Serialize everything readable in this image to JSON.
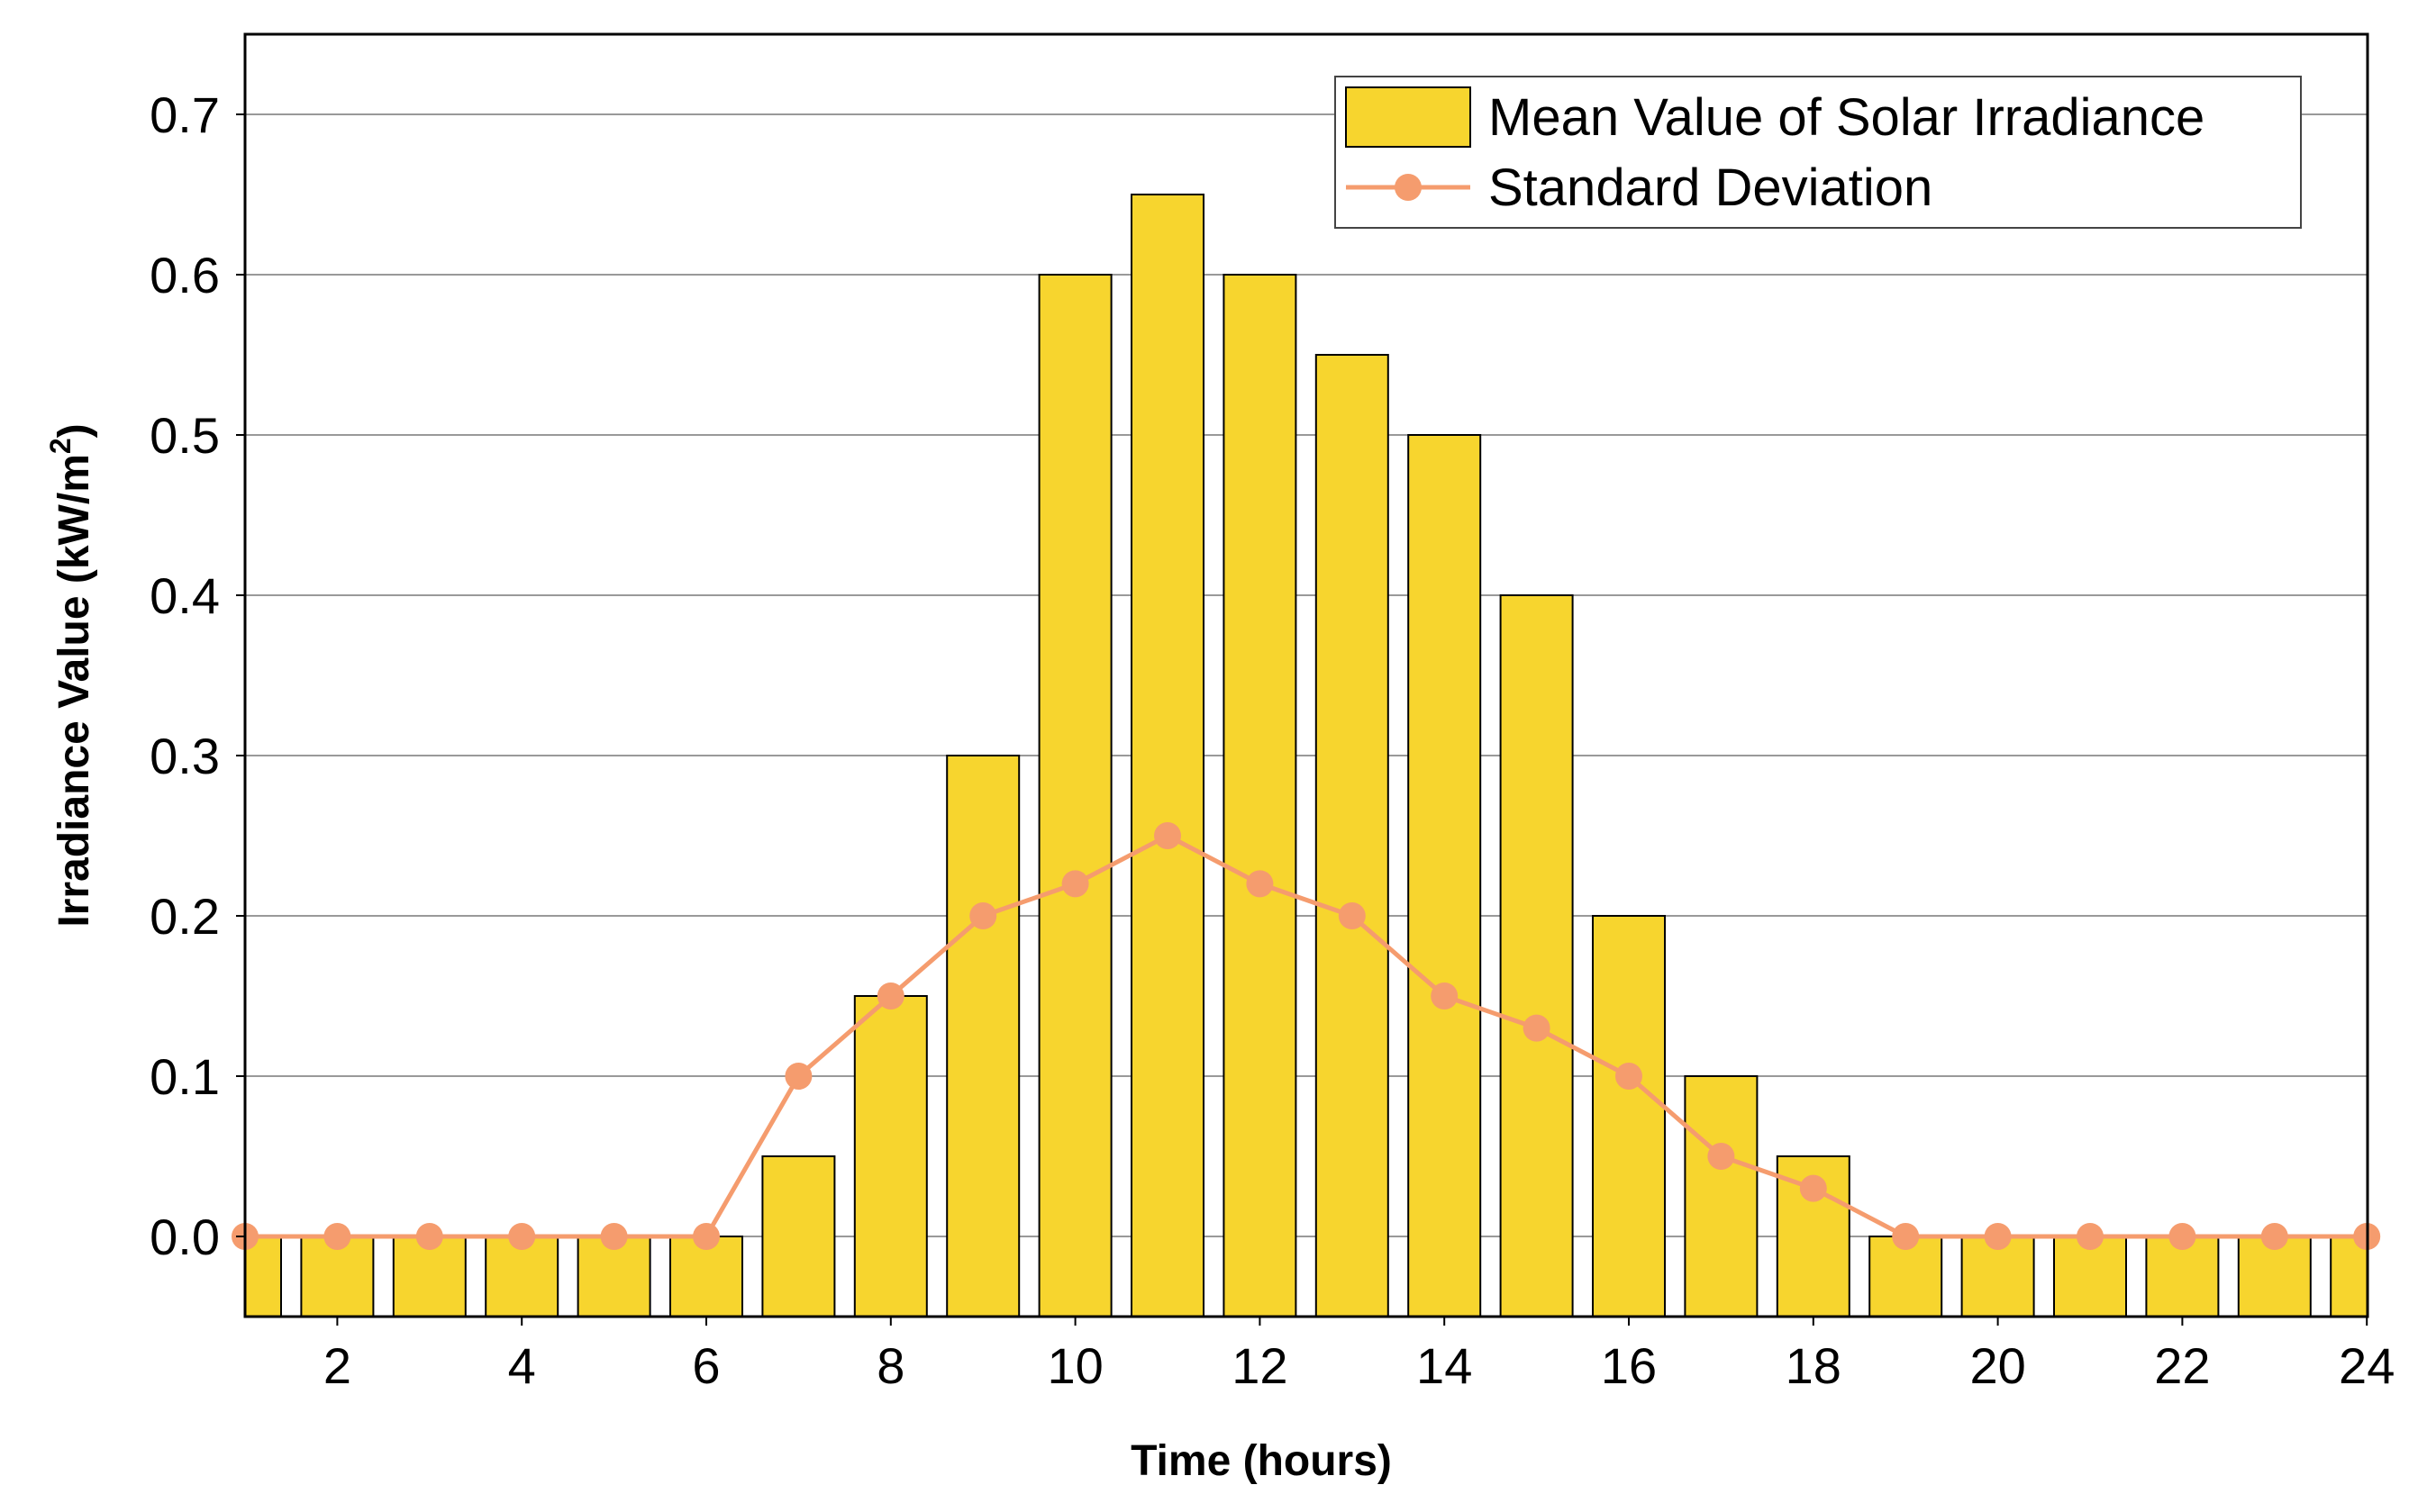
{
  "chart_data": {
    "type": "bar",
    "title": "",
    "xlabel": "Time (hours)",
    "ylabel": "Irradiance Value (kW/m",
    "ylabel_sup": "2",
    "ylabel_close": ")",
    "x": [
      1,
      2,
      3,
      4,
      5,
      6,
      7,
      8,
      9,
      10,
      11,
      12,
      13,
      14,
      15,
      16,
      17,
      18,
      19,
      20,
      21,
      22,
      23,
      24
    ],
    "xlim": [
      1,
      24
    ],
    "ylim": [
      -0.05,
      0.75
    ],
    "xticks": [
      2,
      4,
      6,
      8,
      10,
      12,
      14,
      16,
      18,
      20,
      22,
      24
    ],
    "xtick_labels": [
      "2",
      "4",
      "6",
      "8",
      "10",
      "12",
      "14",
      "16",
      "18",
      "20",
      "22",
      "24"
    ],
    "yticks": [
      0.0,
      0.1,
      0.2,
      0.3,
      0.4,
      0.5,
      0.6,
      0.7
    ],
    "ytick_labels": [
      "0.0",
      "0.1",
      "0.2",
      "0.3",
      "0.4",
      "0.5",
      "0.6",
      "0.7"
    ],
    "grid": "horizontal",
    "legend_position": "top-right",
    "series": [
      {
        "name": "Mean Value of Solar Irradiance",
        "kind": "bar",
        "color": "#F7D52E",
        "values": [
          0,
          0,
          0,
          0,
          0,
          0,
          0.05,
          0.15,
          0.3,
          0.6,
          0.65,
          0.6,
          0.55,
          0.5,
          0.4,
          0.2,
          0.1,
          0.05,
          0,
          0,
          0,
          0,
          0,
          0
        ]
      },
      {
        "name": "Standard Deviation",
        "kind": "line",
        "color": "#F59C6E",
        "values": [
          0,
          0,
          0,
          0,
          0,
          0,
          0.1,
          0.15,
          0.2,
          0.22,
          0.25,
          0.22,
          0.2,
          0.15,
          0.13,
          0.1,
          0.05,
          0.03,
          0,
          0,
          0,
          0,
          0,
          0
        ]
      }
    ]
  }
}
